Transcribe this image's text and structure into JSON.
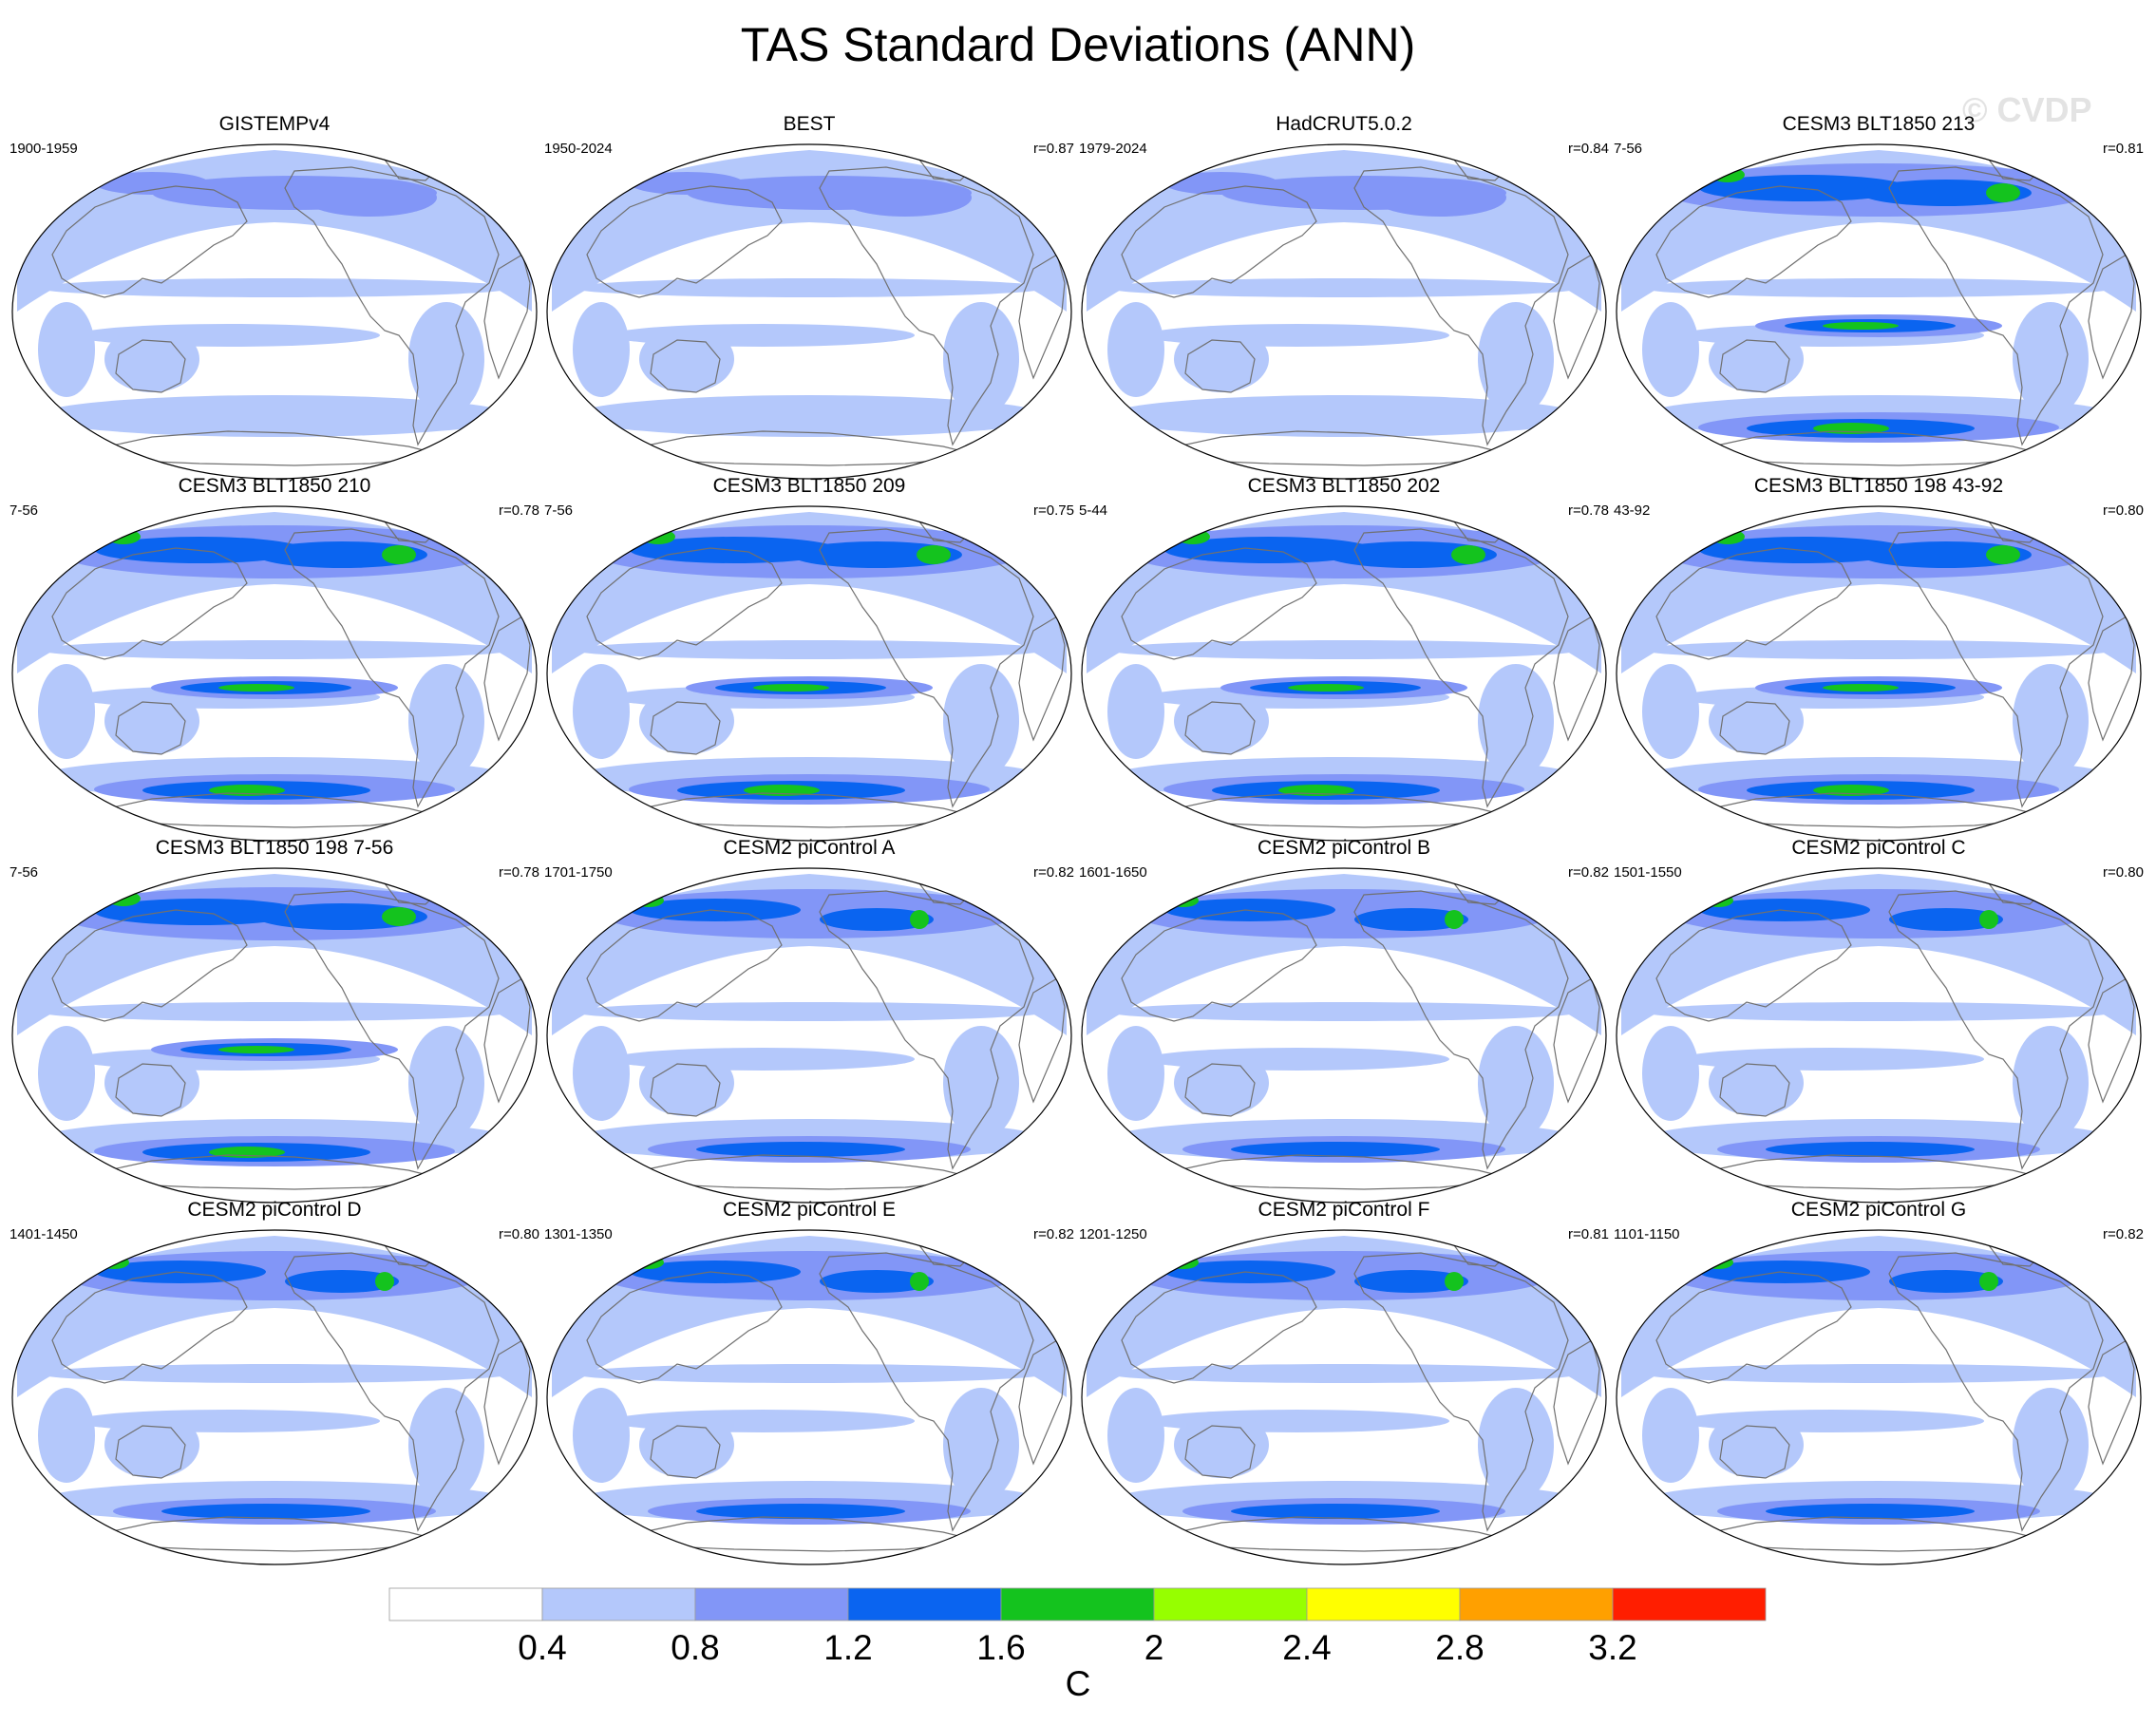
{
  "title": "TAS Standard Deviations (ANN)",
  "watermark": "© CVDP",
  "colors": {
    "levels": [
      "#ffffff",
      "#b4c8fb",
      "#8296f7",
      "#0a64f0",
      "#14c31e",
      "#96ff00",
      "#ffff00",
      "#ffa000",
      "#ff1e00"
    ],
    "coastline": "#707070"
  },
  "panels": [
    {
      "title": "GISTEMPv4",
      "period": "1900-1959",
      "r": ""
    },
    {
      "title": "BEST",
      "period": "1950-2024",
      "r": "r=0.87"
    },
    {
      "title": "HadCRUT5.0.2",
      "period": "1979-2024",
      "r": "r=0.84"
    },
    {
      "title": "CESM3 BLT1850 213",
      "period": "7-56",
      "r": "r=0.81"
    },
    {
      "title": "CESM3 BLT1850 210",
      "period": "7-56",
      "r": "r=0.78"
    },
    {
      "title": "CESM3 BLT1850 209",
      "period": "7-56",
      "r": "r=0.75"
    },
    {
      "title": "CESM3 BLT1850 202",
      "period": "5-44",
      "r": "r=0.78"
    },
    {
      "title": "CESM3 BLT1850 198 43-92",
      "period": "43-92",
      "r": "r=0.80"
    },
    {
      "title": "CESM3 BLT1850 198 7-56",
      "period": "7-56",
      "r": "r=0.78"
    },
    {
      "title": "CESM2 piControl A",
      "period": "1701-1750",
      "r": "r=0.82"
    },
    {
      "title": "CESM2 piControl B",
      "period": "1601-1650",
      "r": "r=0.82"
    },
    {
      "title": "CESM2 piControl C",
      "period": "1501-1550",
      "r": "r=0.80"
    },
    {
      "title": "CESM2 piControl D",
      "period": "1401-1450",
      "r": "r=0.80"
    },
    {
      "title": "CESM2 piControl E",
      "period": "1301-1350",
      "r": "r=0.82"
    },
    {
      "title": "CESM2 piControl F",
      "period": "1201-1250",
      "r": "r=0.81"
    },
    {
      "title": "CESM2 piControl G",
      "period": "1101-1150",
      "r": "r=0.82"
    }
  ],
  "colorbar": {
    "ticks": [
      "0.4",
      "0.8",
      "1.2",
      "1.6",
      "2",
      "2.4",
      "2.8",
      "3.2"
    ],
    "unit": "C"
  }
}
